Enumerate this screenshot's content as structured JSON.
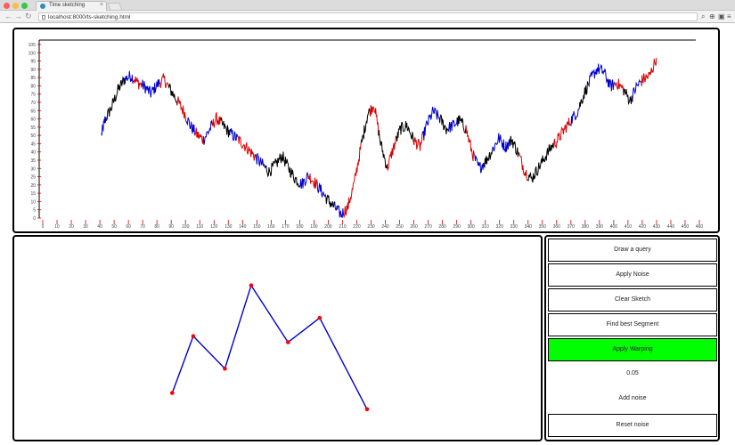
{
  "browser": {
    "tab_title": "Time sketching",
    "url": "localhost:8000/ts-sketching.html",
    "colors": {
      "close": "#fc605c",
      "minimize": "#fdbc40",
      "maximize": "#34c84a"
    }
  },
  "chart_data": {
    "type": "line",
    "title": "",
    "xlabel": "",
    "ylabel": "",
    "series_colors": [
      "#000000",
      "#dd0000",
      "#0000cc"
    ],
    "x_range": [
      0,
      100
    ],
    "y_range": [
      0,
      100
    ],
    "y_tick_labels": [
      "105",
      "100",
      "95",
      "90",
      "85",
      "80",
      "75",
      "70",
      "65",
      "60",
      "55",
      "50",
      "45",
      "40",
      "35",
      "30",
      "25",
      "20",
      "15",
      "10",
      "5",
      "0"
    ],
    "x_tick_labels": [
      "0",
      "10",
      "20",
      "30",
      "40",
      "50",
      "60",
      "70",
      "80",
      "90",
      "100",
      "110",
      "120",
      "130",
      "140",
      "150",
      "160",
      "170",
      "180",
      "190",
      "200",
      "210",
      "220",
      "230",
      "240",
      "250",
      "260",
      "270",
      "280",
      "290",
      "300",
      "310",
      "320",
      "330",
      "340",
      "350",
      "360",
      "370",
      "380",
      "390",
      "400",
      "410",
      "420",
      "430",
      "440",
      "450",
      "460"
    ],
    "keypoints": [
      [
        9.5,
        47
      ],
      [
        10,
        55
      ],
      [
        11,
        62
      ],
      [
        12,
        72
      ],
      [
        13,
        78
      ],
      [
        14,
        80
      ],
      [
        15,
        76
      ],
      [
        16,
        74
      ],
      [
        17,
        70
      ],
      [
        18,
        75
      ],
      [
        19,
        78
      ],
      [
        20,
        72
      ],
      [
        21,
        66
      ],
      [
        22,
        60
      ],
      [
        23,
        52
      ],
      [
        24,
        47
      ],
      [
        25,
        44
      ],
      [
        26,
        50
      ],
      [
        27,
        56
      ],
      [
        28,
        52
      ],
      [
        29,
        48
      ],
      [
        30,
        45
      ],
      [
        31,
        42
      ],
      [
        32,
        38
      ],
      [
        33,
        34
      ],
      [
        34,
        30
      ],
      [
        35,
        26
      ],
      [
        36,
        30
      ],
      [
        37,
        35
      ],
      [
        38,
        28
      ],
      [
        39,
        22
      ],
      [
        40,
        19
      ],
      [
        41,
        24
      ],
      [
        42,
        20
      ],
      [
        43,
        15
      ],
      [
        44,
        10
      ],
      [
        45,
        6
      ],
      [
        46,
        2
      ],
      [
        47,
        6
      ],
      [
        48,
        20
      ],
      [
        49,
        40
      ],
      [
        50,
        58
      ],
      [
        51,
        64
      ],
      [
        52,
        42
      ],
      [
        53,
        28
      ],
      [
        54,
        40
      ],
      [
        55,
        50
      ],
      [
        56,
        52
      ],
      [
        57,
        44
      ],
      [
        58,
        40
      ],
      [
        59,
        52
      ],
      [
        60,
        60
      ],
      [
        61,
        56
      ],
      [
        62,
        50
      ],
      [
        63,
        52
      ],
      [
        64,
        55
      ],
      [
        65,
        50
      ],
      [
        66,
        36
      ],
      [
        67,
        28
      ],
      [
        68,
        32
      ],
      [
        69,
        38
      ],
      [
        70,
        45
      ],
      [
        71,
        40
      ],
      [
        72,
        44
      ],
      [
        73,
        36
      ],
      [
        74,
        26
      ],
      [
        75,
        22
      ],
      [
        76,
        28
      ],
      [
        77,
        34
      ],
      [
        78,
        40
      ],
      [
        79,
        44
      ],
      [
        80,
        50
      ],
      [
        81,
        55
      ],
      [
        82,
        60
      ],
      [
        83,
        70
      ],
      [
        84,
        78
      ],
      [
        85,
        84
      ],
      [
        86,
        82
      ],
      [
        87,
        74
      ],
      [
        88,
        76
      ],
      [
        89,
        72
      ],
      [
        90,
        66
      ],
      [
        91,
        74
      ],
      [
        92,
        78
      ],
      [
        93,
        80
      ],
      [
        94,
        90
      ]
    ]
  },
  "sketch": {
    "line_color": "#0000cc",
    "point_color": "#ff0000",
    "points": [
      [
        0.3,
        0.23
      ],
      [
        0.34,
        0.51
      ],
      [
        0.4,
        0.35
      ],
      [
        0.45,
        0.76
      ],
      [
        0.52,
        0.48
      ],
      [
        0.58,
        0.6
      ],
      [
        0.67,
        0.15
      ]
    ]
  },
  "controls": {
    "draw_query": "Draw a query",
    "apply_noise": "Apply Noise",
    "clear_sketch": "Clear Sketch",
    "find_best_segment": "Find best Segment",
    "apply_warping": "Apply Warping",
    "warping_value": "0.05",
    "add_noise_level": "Add noise",
    "reset_noise": "Reset noise"
  }
}
